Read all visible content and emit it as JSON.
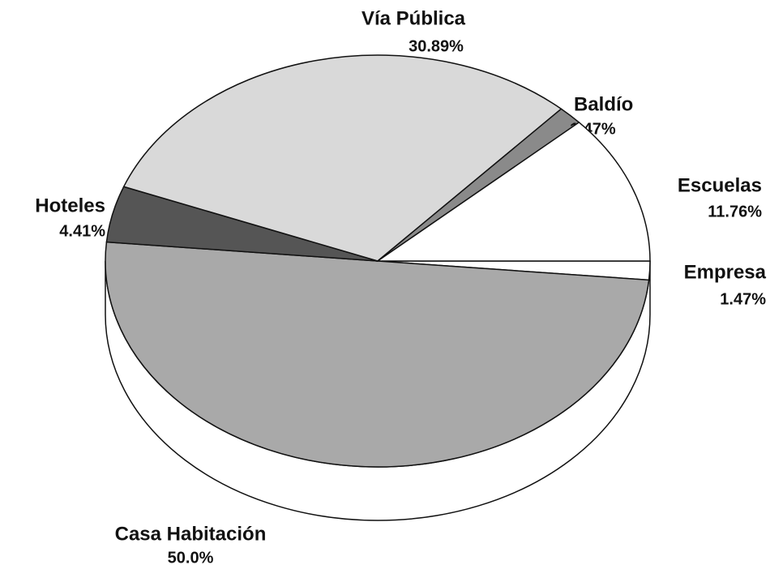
{
  "chart_data": {
    "type": "pie",
    "categories": [
      "Empresa",
      "Casa Habitación",
      "Hoteles",
      "Vía Pública",
      "Baldío",
      "Escuelas"
    ],
    "values": [
      1.47,
      50.0,
      4.41,
      30.89,
      1.47,
      11.76
    ],
    "value_labels": [
      "1.47%",
      "50.0%",
      "4.41%",
      "30.89%",
      "1.47%",
      "11.76%"
    ],
    "colors": [
      "#ffffff",
      "#a9a9a9",
      "#555555",
      "#d9d9d9",
      "#8a8a8a",
      "#ffffff"
    ]
  }
}
